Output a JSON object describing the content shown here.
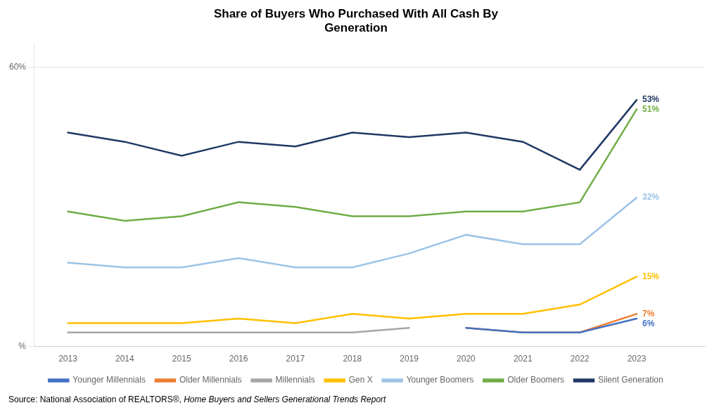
{
  "chart_data": {
    "type": "line",
    "title": "Share of Buyers Who Purchased With All Cash By\nGeneration",
    "x": [
      2013,
      2014,
      2015,
      2016,
      2017,
      2018,
      2019,
      2020,
      2021,
      2022,
      2023
    ],
    "series": [
      {
        "name": "Younger Millennials",
        "color": "#4472C4",
        "values": [
          null,
          null,
          null,
          null,
          null,
          null,
          null,
          4,
          3,
          3,
          6
        ]
      },
      {
        "name": "Older Millennials",
        "color": "#ED7D31",
        "values": [
          null,
          null,
          null,
          null,
          null,
          null,
          null,
          4,
          3,
          3,
          7
        ]
      },
      {
        "name": "Millennials",
        "color": "#A5A5A5",
        "values": [
          3,
          3,
          3,
          3,
          3,
          3,
          4,
          null,
          null,
          null,
          null
        ]
      },
      {
        "name": "Gen X",
        "color": "#FFC000",
        "values": [
          5,
          5,
          5,
          6,
          5,
          7,
          6,
          7,
          7,
          9,
          15
        ]
      },
      {
        "name": "Younger Boomers",
        "color": "#9DC3E6",
        "values": [
          18,
          17,
          17,
          19,
          17,
          17,
          20,
          24,
          22,
          22,
          32
        ]
      },
      {
        "name": "Older Boomers",
        "color": "#70AD47",
        "values": [
          29,
          27,
          28,
          31,
          30,
          28,
          28,
          29,
          29,
          31,
          51
        ]
      },
      {
        "name": "Silent Generation",
        "color": "#1F3864",
        "values": [
          46,
          44,
          41,
          44,
          43,
          46,
          45,
          46,
          44,
          38,
          53
        ]
      }
    ],
    "annotations": [
      {
        "text": "53%",
        "x": 2023,
        "y": 53,
        "color": "#1F3864"
      },
      {
        "text": "51%",
        "x": 2023,
        "y": 51,
        "color": "#70AD47"
      },
      {
        "text": "32%",
        "x": 2023,
        "y": 32,
        "color": "#9DC3E6"
      },
      {
        "text": "15%",
        "x": 2023,
        "y": 15,
        "color": "#FFC000"
      },
      {
        "text": "7%",
        "x": 2023,
        "y": 7,
        "color": "#ED7D31"
      },
      {
        "text": "6%",
        "x": 2023,
        "y": 6,
        "color": "#4472C4"
      }
    ],
    "xlim": [
      2012.4,
      2024.2
    ],
    "xticks": [
      2013,
      2014,
      2015,
      2016,
      2017,
      2018,
      2019,
      2020,
      2021,
      2022,
      2023
    ],
    "ylim": [
      0,
      65
    ],
    "yticks": [
      {
        "value": 0,
        "label": "%"
      },
      {
        "value": 60,
        "label": "60%"
      }
    ],
    "grid": "y",
    "legend": "bottom",
    "source": [
      "Source: National Association of REALTORS®, ",
      "Home Buyers and Sellers Generational Trends Report"
    ]
  }
}
